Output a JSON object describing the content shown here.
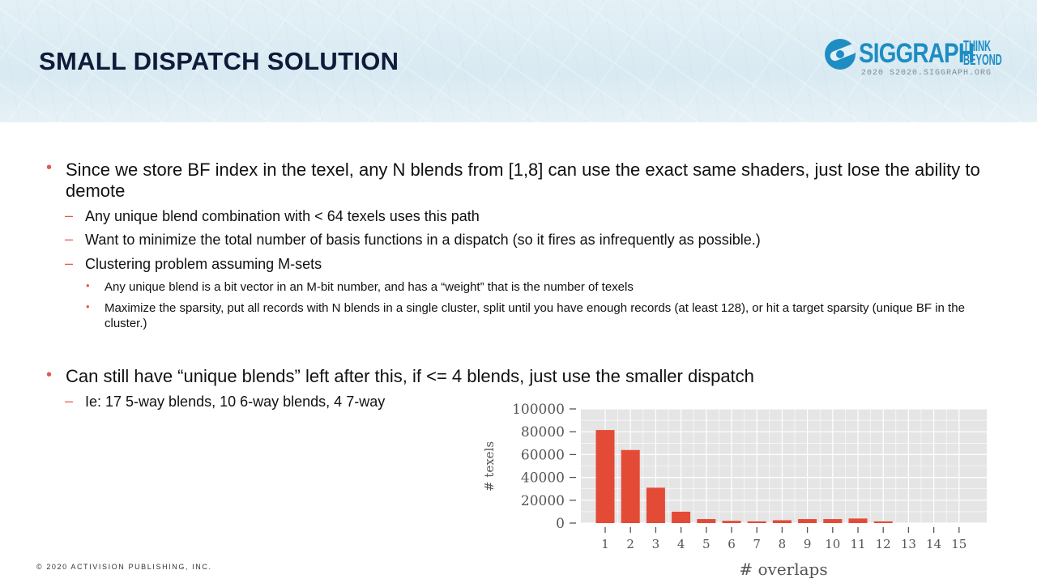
{
  "slide": {
    "title": "SMALL DISPATCH SOLUTION",
    "footer": "© 2020 ACTIVISION PUBLISHING, INC."
  },
  "logo": {
    "wordmark": "SIGGRAPH",
    "think": "THINK",
    "beyond": "BEYOND",
    "sub": "2020  S2020.SIGGRAPH.ORG",
    "color": "#1e8dc3"
  },
  "bullets": [
    {
      "text": "Since we store BF index in the texel, any N blends from [1,8] can use the exact same shaders, just lose the ability to demote",
      "children": [
        {
          "text": "Any unique blend combination with < 64 texels uses this path"
        },
        {
          "text": "Want to minimize the total number of basis functions in a dispatch (so it fires as infrequently as possible.)"
        },
        {
          "text": "Clustering problem assuming M-sets",
          "children": [
            {
              "text": "Any unique blend is a bit vector in an M-bit number, and has a “weight” that is the number of texels"
            },
            {
              "text": "Maximize the sparsity, put all records with N blends in a single cluster, split until you have enough records (at least 128), or hit a target sparsity (unique BF in the cluster.)"
            }
          ]
        }
      ]
    },
    {
      "text": "Can still have “unique blends” left after this, if <= 4 blends, just use the smaller dispatch",
      "children": [
        {
          "text": "Ie: 17 5-way blends, 10 6-way blends, 4 7-way"
        }
      ]
    }
  ],
  "markers": {
    "level1": "•",
    "level2": "–",
    "level3": "•"
  },
  "chart_data": {
    "type": "bar",
    "title": "",
    "xlabel": "# overlaps",
    "ylabel": "# texels",
    "categories": [
      "1",
      "2",
      "3",
      "4",
      "5",
      "6",
      "7",
      "8",
      "9",
      "10",
      "11",
      "12",
      "13",
      "14",
      "15"
    ],
    "values": [
      81500,
      64000,
      31000,
      10000,
      3500,
      2000,
      1500,
      2500,
      3500,
      3500,
      4000,
      1500,
      0,
      0,
      0
    ],
    "ylim": [
      0,
      100000
    ],
    "yticks": [
      "0",
      "20000",
      "40000",
      "60000",
      "80000",
      "100000"
    ],
    "grid": true,
    "colors": {
      "bar": "#e34b36",
      "panel": "#e5e5e5",
      "grid": "#ffffff"
    }
  }
}
